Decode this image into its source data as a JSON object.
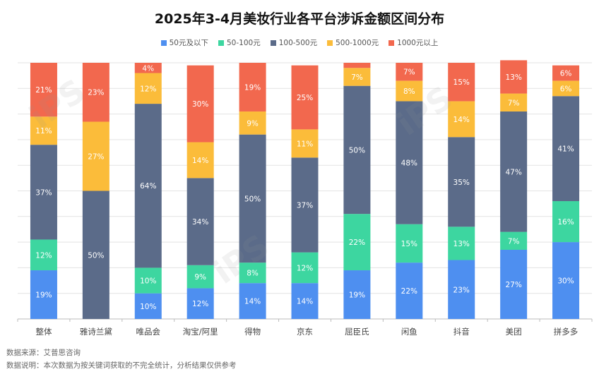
{
  "title": "2025年3-4月美妆行业各平台涉诉金额区间分布",
  "colors": {
    "s50": "#4e8ff0",
    "s50_100": "#3dd6a0",
    "s100_500": "#5b6b89",
    "s500_1000": "#fbbc3a",
    "s1000": "#f2684e",
    "grid": "#e3e3e3",
    "axis": "#bbbbbb"
  },
  "footer": {
    "source": "数据来源：艾普思咨询",
    "note": "数据说明：本次数据为按关键词获取的不完全统计，分析结果仅供参考"
  },
  "watermark": {
    "brand": "iPS 艾普思",
    "subtitle": "iPS Consulting"
  },
  "chart_data": {
    "type": "bar",
    "stacked": true,
    "percent": true,
    "ylim": [
      0,
      100
    ],
    "grid": true,
    "legend_position": "top-center",
    "categories": [
      "整体",
      "雅诗兰黛",
      "唯品会",
      "淘宝/阿里",
      "得物",
      "京东",
      "屈臣氏",
      "闲鱼",
      "抖音",
      "美团",
      "拼多多"
    ],
    "series": [
      {
        "name": "50元及以下",
        "color": "#4e8ff0",
        "values": [
          19,
          0,
          10,
          12,
          14,
          14,
          19,
          22,
          23,
          27,
          30
        ]
      },
      {
        "name": "50-100元",
        "color": "#3dd6a0",
        "values": [
          12,
          0,
          10,
          9,
          8,
          12,
          22,
          15,
          13,
          7,
          16
        ]
      },
      {
        "name": "100-500元",
        "color": "#5b6b89",
        "values": [
          37,
          50,
          64,
          34,
          50,
          37,
          50,
          48,
          35,
          47,
          41
        ]
      },
      {
        "name": "500-1000元",
        "color": "#fbbc3a",
        "values": [
          11,
          27,
          12,
          14,
          9,
          11,
          7,
          8,
          14,
          7,
          6
        ]
      },
      {
        "name": "1000元以上",
        "color": "#f2684e",
        "values": [
          21,
          23,
          4,
          30,
          19,
          25,
          2,
          7,
          15,
          13,
          6
        ]
      }
    ],
    "label_suffix": "%"
  }
}
